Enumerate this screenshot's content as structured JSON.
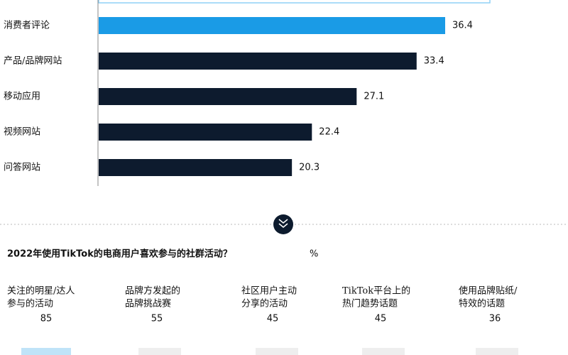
{
  "chart_data": [
    {
      "type": "bar",
      "categories": [
        "消费者评论",
        "产品/品牌网站",
        "移动应用",
        "视频网站",
        "问答网站"
      ],
      "values": [
        36.4,
        33.4,
        27.1,
        22.4,
        20.3
      ],
      "colors": [
        "#1a9be6",
        "#0d1b2e",
        "#0d1b2e",
        "#0d1b2e",
        "#0d1b2e"
      ]
    },
    {
      "type": "stat",
      "title": "2022年使用TikTok的电商用户喜欢参与的社群活动？",
      "unit": "%",
      "categories": [
        [
          "关注的明星/达人",
          "参与的活动"
        ],
        [
          "品牌方发起的",
          "品牌挑战赛"
        ],
        [
          "社区用户主动",
          "分享的活动"
        ],
        [
          "TikTok平台上的",
          "热门趋势话题"
        ],
        [
          "使用品牌贴纸/",
          "特效的话题"
        ]
      ],
      "values": [
        85,
        55,
        45,
        45,
        36
      ]
    }
  ]
}
